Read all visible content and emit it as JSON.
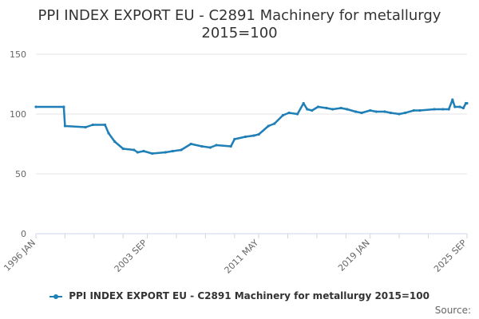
{
  "chart_data": {
    "type": "line",
    "title_line1": "PPI INDEX EXPORT EU - C2891 Machinery for metallurgy",
    "title_line2": "2015=100",
    "xlabel": "",
    "ylabel": "",
    "ylim": [
      0,
      150
    ],
    "y_ticks": [
      0,
      50,
      100,
      150
    ],
    "x_ticks": [
      "1996 JAN",
      "2003 SEP",
      "2011 MAY",
      "2019 JAN",
      "2025 SEP"
    ],
    "grid": "horizontal",
    "legend_position": "bottom",
    "series": [
      {
        "name": "PPI INDEX EXPORT EU - C2891 Machinery for metallurgy 2015=100",
        "color": "#1f7fb6",
        "points": [
          [
            "1996-01",
            106
          ],
          [
            "1997-12",
            106
          ],
          [
            "1998-01",
            90
          ],
          [
            "1999-06",
            89
          ],
          [
            "1999-12",
            91
          ],
          [
            "2000-10",
            91
          ],
          [
            "2001-01",
            84
          ],
          [
            "2001-06",
            77
          ],
          [
            "2002-01",
            71
          ],
          [
            "2002-10",
            70
          ],
          [
            "2003-01",
            68
          ],
          [
            "2003-06",
            69
          ],
          [
            "2004-01",
            67
          ],
          [
            "2004-12",
            68
          ],
          [
            "2005-06",
            69
          ],
          [
            "2006-01",
            70
          ],
          [
            "2006-09",
            75
          ],
          [
            "2007-06",
            73
          ],
          [
            "2008-01",
            72
          ],
          [
            "2008-06",
            74
          ],
          [
            "2009-06",
            73
          ],
          [
            "2009-09",
            79
          ],
          [
            "2010-06",
            81
          ],
          [
            "2011-01",
            82
          ],
          [
            "2011-05",
            83
          ],
          [
            "2012-01",
            90
          ],
          [
            "2012-06",
            92
          ],
          [
            "2013-01",
            99
          ],
          [
            "2013-06",
            101
          ],
          [
            "2014-01",
            100
          ],
          [
            "2014-06",
            109
          ],
          [
            "2014-09",
            104
          ],
          [
            "2015-01",
            103
          ],
          [
            "2015-06",
            106
          ],
          [
            "2016-01",
            105
          ],
          [
            "2016-06",
            104
          ],
          [
            "2017-01",
            105
          ],
          [
            "2017-06",
            104
          ],
          [
            "2018-01",
            102
          ],
          [
            "2018-06",
            101
          ],
          [
            "2019-01",
            103
          ],
          [
            "2019-06",
            102
          ],
          [
            "2020-01",
            102
          ],
          [
            "2020-06",
            101
          ],
          [
            "2021-01",
            100
          ],
          [
            "2021-06",
            101
          ],
          [
            "2022-01",
            103
          ],
          [
            "2022-06",
            103
          ],
          [
            "2023-06",
            104
          ],
          [
            "2024-01",
            104
          ],
          [
            "2024-06",
            104
          ],
          [
            "2024-09",
            112
          ],
          [
            "2024-11",
            106
          ],
          [
            "2025-03",
            106
          ],
          [
            "2025-06",
            105
          ],
          [
            "2025-08",
            109
          ],
          [
            "2025-09",
            109
          ]
        ]
      }
    ]
  },
  "legend": {
    "label": "PPI INDEX EXPORT EU - C2891 Machinery for metallurgy 2015=100"
  },
  "footer": {
    "source_label": "Source:"
  }
}
